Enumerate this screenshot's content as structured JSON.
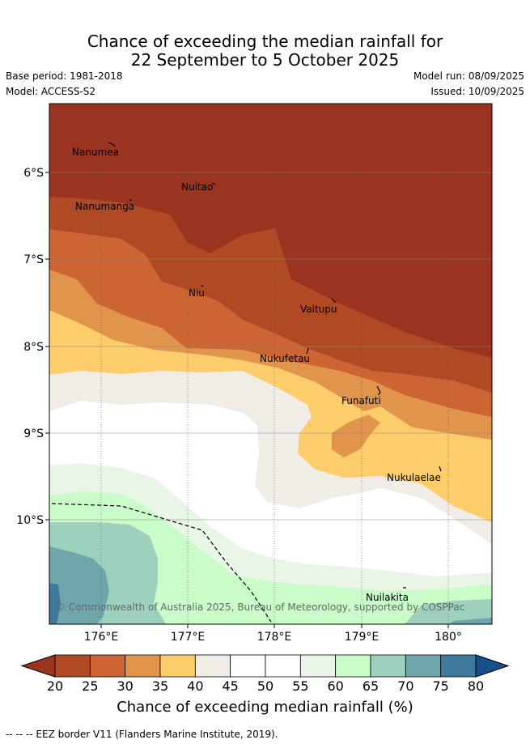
{
  "title_line1": "Chance of exceeding the median rainfall for",
  "title_line2": "22 September to 5 October 2025",
  "base_period": "Base period: 1981-2018",
  "model": "Model: ACCESS-S2",
  "model_run": "Model run: 08/09/2025",
  "issued": "Issued: 10/09/2025",
  "lat_ticks": [
    "6°S",
    "7°S",
    "8°S",
    "9°S",
    "10°S"
  ],
  "lon_ticks": [
    "176°E",
    "177°E",
    "178°E",
    "179°E",
    "180°"
  ],
  "places": {
    "nanumea": "Nanumea",
    "nuitao": "Nuitao",
    "nanumanga": "Nanumanga",
    "niu": "Niu",
    "vaitupu": "Vaitupu",
    "nukufetau": "Nukufetau",
    "funafuti": "Funafuti",
    "nukulaelae": "Nukulaelae",
    "nuilakita": "Nuilakita"
  },
  "copyright": "© Commonwealth of Australia 2025, Bureau of Meteorology, supported by COSPPac",
  "colorbar": {
    "ticks": [
      "20",
      "25",
      "30",
      "35",
      "40",
      "45",
      "50",
      "55",
      "60",
      "65",
      "70",
      "75",
      "80"
    ],
    "colors": [
      "#9a3421",
      "#b04a25",
      "#cc6433",
      "#e0944c",
      "#fdcd6b",
      "#f1ece6",
      "#ffffff",
      "#ffffff",
      "#e9f5e6",
      "#c9fcc9",
      "#9dd1bd",
      "#6fa6ab",
      "#3f7a9c",
      "#164f8b"
    ],
    "label": "Chance of exceeding median rainfall (%)"
  },
  "footer": "-- -- -- EEZ border V11 (Flanders Marine Institute, 2019)."
}
